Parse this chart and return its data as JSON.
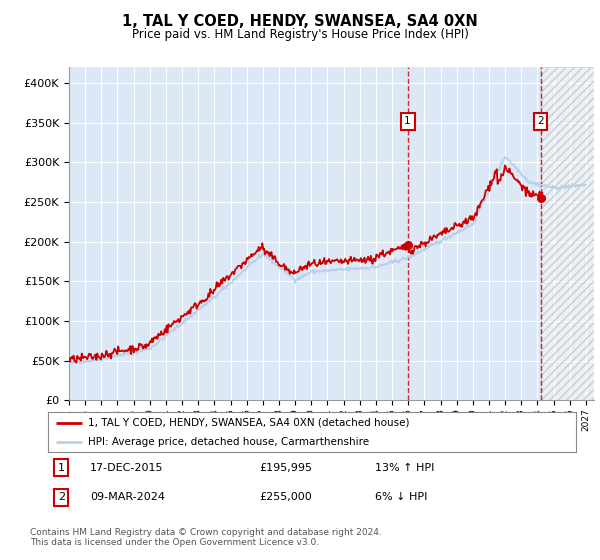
{
  "title": "1, TAL Y COED, HENDY, SWANSEA, SA4 0XN",
  "subtitle": "Price paid vs. HM Land Registry's House Price Index (HPI)",
  "ylim": [
    0,
    420000
  ],
  "xlim_start": 1995.0,
  "xlim_end": 2027.5,
  "hpi_color": "#b8d0e8",
  "price_color": "#cc0000",
  "background_plot": "#dce8f5",
  "background_fig": "#ffffff",
  "grid_color": "#ffffff",
  "marker1_x": 2015.96,
  "marker1_y": 195995,
  "marker2_x": 2024.19,
  "marker2_y": 255000,
  "marker1_label": "17-DEC-2015",
  "marker1_price": "£195,995",
  "marker1_hpi": "13% ↑ HPI",
  "marker2_label": "09-MAR-2024",
  "marker2_price": "£255,000",
  "marker2_hpi": "6% ↓ HPI",
  "legend_line1": "1, TAL Y COED, HENDY, SWANSEA, SA4 0XN (detached house)",
  "legend_line2": "HPI: Average price, detached house, Carmarthenshire",
  "footer": "Contains HM Land Registry data © Crown copyright and database right 2024.\nThis data is licensed under the Open Government Licence v3.0.",
  "future_hatch_start": 2024.19
}
